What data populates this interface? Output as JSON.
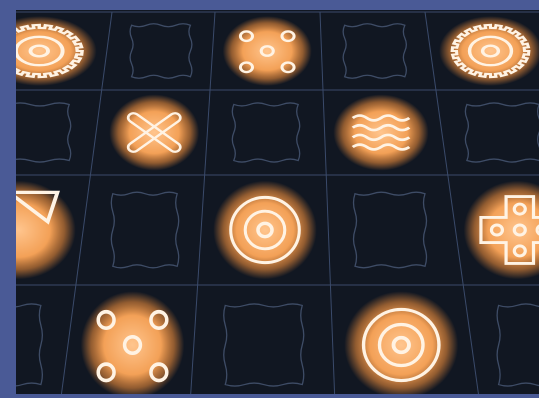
{
  "window": {
    "frame_color": "#4a5a96",
    "board_color": "#111722"
  },
  "board": {
    "rows": 4,
    "cols": 5,
    "empty_slot_icon": "stamp-outline-icon",
    "glow_color": "#ffb46a",
    "line_color": "#fff3e4"
  },
  "tiles": [
    {
      "row": 0,
      "col": 0,
      "state": "active",
      "icon": "gear-ring-icon"
    },
    {
      "row": 0,
      "col": 1,
      "state": "empty",
      "icon": "stamp-outline-icon"
    },
    {
      "row": 0,
      "col": 2,
      "state": "active",
      "icon": "four-dots-ring-icon"
    },
    {
      "row": 0,
      "col": 3,
      "state": "empty",
      "icon": "stamp-outline-icon"
    },
    {
      "row": 0,
      "col": 4,
      "state": "active",
      "icon": "gear-ring-icon"
    },
    {
      "row": 1,
      "col": 0,
      "state": "empty",
      "icon": "stamp-outline-icon"
    },
    {
      "row": 1,
      "col": 1,
      "state": "active",
      "icon": "crossed-sticks-icon"
    },
    {
      "row": 1,
      "col": 2,
      "state": "empty",
      "icon": "stamp-outline-icon"
    },
    {
      "row": 1,
      "col": 3,
      "state": "active",
      "icon": "wavy-lines-icon"
    },
    {
      "row": 1,
      "col": 4,
      "state": "empty",
      "icon": "stamp-outline-icon"
    },
    {
      "row": 2,
      "col": 0,
      "state": "active",
      "icon": "shapes-icon"
    },
    {
      "row": 2,
      "col": 1,
      "state": "empty",
      "icon": "stamp-outline-icon"
    },
    {
      "row": 2,
      "col": 2,
      "state": "active",
      "icon": "concentric-circle-icon"
    },
    {
      "row": 2,
      "col": 3,
      "state": "empty",
      "icon": "stamp-outline-icon"
    },
    {
      "row": 2,
      "col": 4,
      "state": "active",
      "icon": "dotted-cross-icon"
    },
    {
      "row": 3,
      "col": 0,
      "state": "empty",
      "icon": "stamp-outline-icon"
    },
    {
      "row": 3,
      "col": 1,
      "state": "active",
      "icon": "five-dots-icon"
    },
    {
      "row": 3,
      "col": 2,
      "state": "empty",
      "icon": "stamp-outline-icon"
    },
    {
      "row": 3,
      "col": 3,
      "state": "active",
      "icon": "concentric-circle-icon"
    },
    {
      "row": 3,
      "col": 4,
      "state": "empty",
      "icon": "stamp-outline-icon"
    }
  ]
}
